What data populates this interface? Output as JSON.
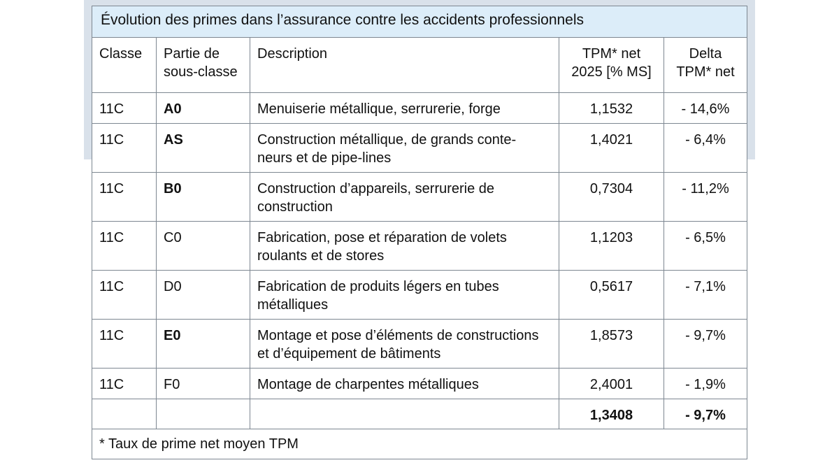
{
  "table": {
    "title": "Évolution des primes dans l’assurance contre les accidents professionnels",
    "headers": {
      "classe": "Classe",
      "partie_line1": "Partie de",
      "partie_line2": "sous-classe",
      "description": "Description",
      "tpm_line1": "TPM* net",
      "tpm_line2": "2025 [% MS]",
      "delta_line1": "Delta",
      "delta_line2": "TPM* net"
    },
    "rows": [
      {
        "classe": "11C",
        "partie": "A0",
        "desc1": "Menuiserie métallique, serrurerie, forge",
        "desc2": "",
        "tpm": "1,1532",
        "delta": "- 14,6%"
      },
      {
        "classe": "11C",
        "partie": "AS",
        "desc1": "Construction métallique, de grands conte-",
        "desc2": "neurs et de pipe-lines",
        "tpm": "1,4021",
        "delta": "- 6,4%"
      },
      {
        "classe": "11C",
        "partie": "B0",
        "desc1": "Construction d’appareils, serrurerie de",
        "desc2": "construction",
        "tpm": "0,7304",
        "delta": "- 11,2%"
      },
      {
        "classe": "11C",
        "partie": "C0",
        "desc1": "Fabrication, pose et réparation de volets",
        "desc2": "roulants et de stores",
        "tpm": "1,1203",
        "delta": "- 6,5%"
      },
      {
        "classe": "11C",
        "partie": "D0",
        "desc1": "Fabrication de produits légers en tubes",
        "desc2": "métalliques",
        "tpm": "0,5617",
        "delta": "- 7,1%"
      },
      {
        "classe": "11C",
        "partie": "E0",
        "desc1": "Montage et pose d’éléments de constructions",
        "desc2": "et d’équipement de bâtiments",
        "tpm": "1,8573",
        "delta": "- 9,7%"
      },
      {
        "classe": "11C",
        "partie": "F0",
        "desc1": "Montage de charpentes métalliques",
        "desc2": "",
        "tpm": "2,4001",
        "delta": "- 1,9%"
      }
    ],
    "total": {
      "tpm": "1,3408",
      "delta": "- 9,7%"
    },
    "footnote": "* Taux de prime net moyen TPM"
  }
}
